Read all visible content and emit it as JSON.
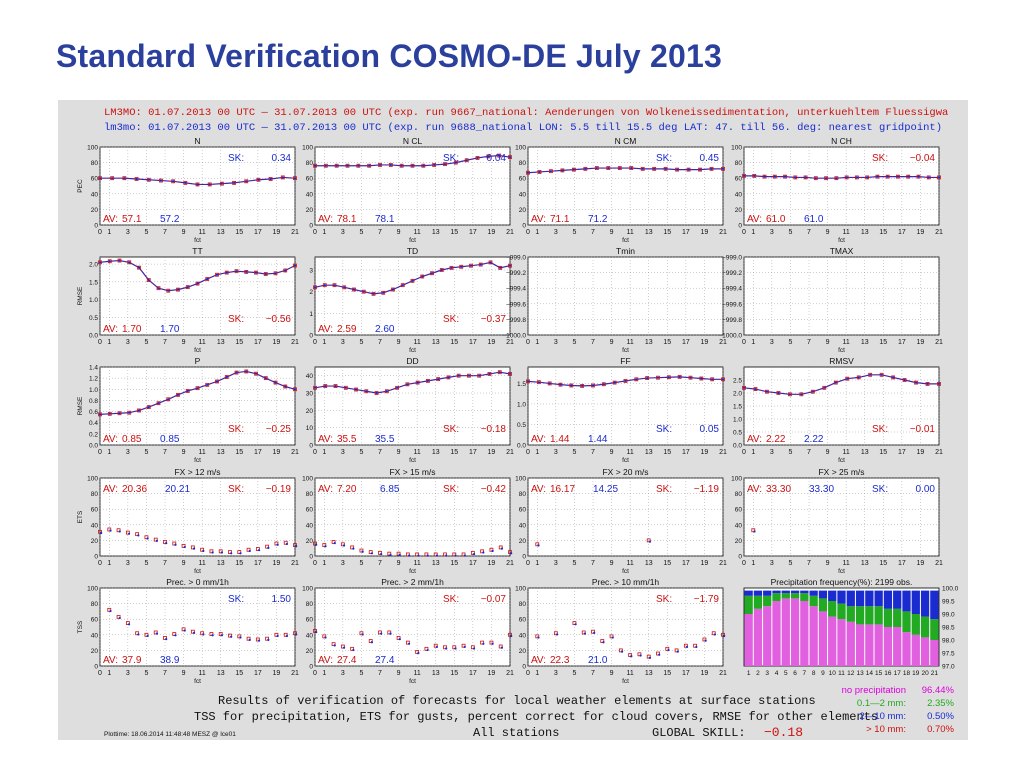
{
  "slide_title": "Standard Verification COSMO-DE July 2013",
  "colors": {
    "run1": "#cc1111",
    "run2": "#1a2bd0",
    "title": "#2b3f9c",
    "green": "#22aa22",
    "magenta": "#dd00dd"
  },
  "header": {
    "line1": "LM3MO: 01.07.2013 00 UTC — 31.07.2013 00 UTC (exp. run 9667_national: Aenderungen von Wolkeneissedimentation, unterkuehltem Fluessigwa",
    "line2": "lm3mo: 01.07.2013 00 UTC — 31.07.2013 00 UTC (exp. run 9688_national LON: 5.5 till 15.5 deg LAT: 47. till 56. deg: nearest gridpoint)"
  },
  "x_ticks": [
    "0",
    "1",
    "3",
    "5",
    "7",
    "9",
    "11",
    "13",
    "15",
    "17",
    "19",
    "21"
  ],
  "x_unit": "fct",
  "row_labels": [
    "PEC",
    "RMSE",
    "RMSE",
    "ETS",
    "TSS"
  ],
  "freq_legend": [
    {
      "label": "no precipitation",
      "value": "96.44%",
      "color": "#dd00dd"
    },
    {
      "label": "0.1—2 mm:",
      "value": "2.35%",
      "color": "#22aa22"
    },
    {
      "label": "2—10 mm:",
      "value": "0.50%",
      "color": "#1a2bd0"
    },
    {
      "label": "> 10 mm:",
      "value": "0.70%",
      "color": "#cc1111"
    }
  ],
  "footer": {
    "line1": "Results of verification of forecasts for local weather elements at surface stations",
    "line2": "TSS for precipitation, ETS for gusts, percent correct for cloud covers, RMSE for other elements",
    "stations": "All stations",
    "global_skill_label": "GLOBAL SKILL:",
    "global_skill_value": "−0.18",
    "plottime": "Plottime: 18.06.2014 11:48:48 MESZ @ lce01"
  },
  "chart_data": [
    {
      "type": "line",
      "title": "N",
      "ylim": [
        0,
        100
      ],
      "yticks": [
        "0",
        "20",
        "40",
        "60",
        "80",
        "100"
      ],
      "sk": "0.34",
      "sk_color": "#1a2bd0",
      "av1": "57.1",
      "av2": "57.2",
      "series": [
        {
          "values": [
            60,
            60,
            60,
            59,
            58,
            57,
            56,
            54,
            52,
            52,
            53,
            54,
            56,
            58,
            59,
            61,
            60
          ]
        }
      ]
    },
    {
      "type": "line",
      "title": "N CL",
      "ylim": [
        0,
        100
      ],
      "yticks": [
        "0",
        "20",
        "40",
        "60",
        "80",
        "100"
      ],
      "sk": "0.04",
      "sk_color": "#1a2bd0",
      "av1": "78.1",
      "av2": "78.1",
      "series": [
        {
          "values": [
            76,
            76,
            76,
            76,
            76,
            76,
            77,
            77,
            76,
            76,
            76,
            77,
            78,
            80,
            83,
            86,
            88,
            89,
            87
          ]
        }
      ]
    },
    {
      "type": "line",
      "title": "N CM",
      "ylim": [
        0,
        100
      ],
      "yticks": [
        "0",
        "20",
        "40",
        "60",
        "80",
        "100"
      ],
      "sk": "0.45",
      "sk_color": "#1a2bd0",
      "av1": "71.1",
      "av2": "71.2",
      "series": [
        {
          "values": [
            67,
            68,
            69,
            70,
            71,
            72,
            73,
            73,
            73,
            73,
            72,
            72,
            72,
            71,
            71,
            71,
            72,
            72
          ]
        }
      ]
    },
    {
      "type": "line",
      "title": "N CH",
      "ylim": [
        0,
        100
      ],
      "yticks": [
        "0",
        "20",
        "40",
        "60",
        "80",
        "100"
      ],
      "sk": "−0.04",
      "sk_color": "#cc1111",
      "av1": "61.0",
      "av2": "61.0",
      "series": [
        {
          "values": [
            63,
            63,
            62,
            62,
            62,
            61,
            61,
            60,
            60,
            60,
            61,
            61,
            61,
            62,
            62,
            62,
            62,
            62,
            61,
            61
          ]
        }
      ]
    },
    {
      "type": "line",
      "title": "TT",
      "ylim": [
        0,
        2.2
      ],
      "yticks": [
        "0.0",
        "0.5",
        "1.0",
        "1.5",
        "2.0"
      ],
      "sk": "−0.56",
      "sk_color": "#cc1111",
      "av1": "1.70",
      "av2": "1.70",
      "series": [
        {
          "values": [
            2.05,
            2.08,
            2.1,
            2.05,
            1.9,
            1.55,
            1.32,
            1.25,
            1.28,
            1.35,
            1.45,
            1.58,
            1.7,
            1.76,
            1.8,
            1.78,
            1.76,
            1.72,
            1.74,
            1.82,
            1.96
          ]
        }
      ]
    },
    {
      "type": "line",
      "title": "TD",
      "ylim": [
        0,
        3.6
      ],
      "yticks": [
        "0",
        "1",
        "2",
        "3"
      ],
      "sk": "−0.37",
      "sk_color": "#cc1111",
      "av1": "2.59",
      "av2": "2.60",
      "series": [
        {
          "values": [
            2.2,
            2.3,
            2.3,
            2.2,
            2.1,
            2.0,
            1.9,
            1.95,
            2.1,
            2.3,
            2.5,
            2.7,
            2.85,
            3.0,
            3.1,
            3.15,
            3.2,
            3.25,
            3.35,
            3.1,
            3.2
          ]
        }
      ]
    },
    {
      "type": "line",
      "title": "Tmin",
      "ylim": [
        -1000.0,
        -999.0
      ],
      "yticks": [
        "−1000.0",
        "−999.8",
        "−999.6",
        "−999.4",
        "−999.2",
        "−999.0"
      ],
      "sk": "",
      "sk_color": "#1a2bd0",
      "av1": "",
      "av2": "",
      "series": []
    },
    {
      "type": "line",
      "title": "TMAX",
      "ylim": [
        -1000.0,
        -999.0
      ],
      "yticks": [
        "−1000.0",
        "−999.8",
        "−999.6",
        "−999.4",
        "−999.2",
        "−999.0"
      ],
      "sk": "",
      "sk_color": "#1a2bd0",
      "av1": "",
      "av2": "",
      "series": []
    },
    {
      "type": "line",
      "title": "P",
      "ylim": [
        0,
        1.4
      ],
      "yticks": [
        "0.0",
        "0.2",
        "0.4",
        "0.6",
        "0.8",
        "1.0",
        "1.2",
        "1.4"
      ],
      "sk": "−0.25",
      "sk_color": "#cc1111",
      "av1": "0.85",
      "av2": "0.85",
      "series": [
        {
          "values": [
            0.55,
            0.56,
            0.57,
            0.58,
            0.62,
            0.68,
            0.75,
            0.82,
            0.9,
            0.97,
            1.02,
            1.08,
            1.14,
            1.22,
            1.3,
            1.32,
            1.28,
            1.2,
            1.12,
            1.05,
            1.0
          ]
        }
      ]
    },
    {
      "type": "line",
      "title": "DD",
      "ylim": [
        0,
        45
      ],
      "yticks": [
        "0",
        "10",
        "20",
        "30",
        "40"
      ],
      "sk": "−0.18",
      "sk_color": "#cc1111",
      "av1": "35.5",
      "av2": "35.5",
      "series": [
        {
          "values": [
            33,
            34,
            34,
            33,
            32,
            31,
            30,
            31,
            33,
            35,
            36,
            37,
            38,
            39,
            40,
            40,
            40,
            41,
            42,
            41
          ]
        }
      ]
    },
    {
      "type": "line",
      "title": "FF",
      "ylim": [
        0,
        1.9
      ],
      "yticks": [
        "0.0",
        "0.5",
        "1.0",
        "1.5"
      ],
      "sk": "0.05",
      "sk_color": "#1a2bd0",
      "av1": "1.44",
      "av2": "1.44",
      "series": [
        {
          "values": [
            1.55,
            1.53,
            1.5,
            1.47,
            1.45,
            1.44,
            1.45,
            1.48,
            1.52,
            1.56,
            1.6,
            1.63,
            1.64,
            1.65,
            1.66,
            1.64,
            1.62,
            1.6,
            1.6
          ]
        }
      ]
    },
    {
      "type": "line",
      "title": "RMSV",
      "ylim": [
        0,
        3.0
      ],
      "yticks": [
        "0.0",
        "0.5",
        "1.0",
        "1.5",
        "2.0",
        "2.5"
      ],
      "sk": "−0.01",
      "sk_color": "#cc1111",
      "av1": "2.22",
      "av2": "2.22",
      "series": [
        {
          "values": [
            2.2,
            2.15,
            2.05,
            2.0,
            1.95,
            1.95,
            2.05,
            2.2,
            2.4,
            2.55,
            2.6,
            2.7,
            2.7,
            2.6,
            2.5,
            2.4,
            2.35,
            2.35
          ]
        }
      ]
    },
    {
      "type": "scatter",
      "title": "FX > 12 m/s",
      "ylim": [
        0,
        100
      ],
      "yticks": [
        "0",
        "20",
        "40",
        "60",
        "80",
        "100"
      ],
      "sk": "−0.19",
      "sk_color": "#cc1111",
      "av1": "20.36",
      "av2": "20.21",
      "x": [
        0,
        1,
        2,
        3,
        4,
        5,
        6,
        7,
        8,
        9,
        10,
        11,
        12,
        13,
        14,
        15,
        16,
        17,
        18,
        19,
        20,
        21
      ],
      "series": [
        {
          "values": [
            31,
            34,
            33,
            30,
            28,
            24,
            21,
            18,
            16,
            13,
            11,
            8,
            6,
            6,
            5,
            5,
            8,
            9,
            12,
            16,
            17,
            14
          ]
        }
      ]
    },
    {
      "type": "scatter",
      "title": "FX > 15 m/s",
      "ylim": [
        0,
        100
      ],
      "yticks": [
        "0",
        "20",
        "40",
        "60",
        "80",
        "100"
      ],
      "sk": "−0.42",
      "sk_color": "#cc1111",
      "av1": "7.20",
      "av2": "6.85",
      "x": [
        0,
        1,
        2,
        3,
        4,
        5,
        6,
        7,
        8,
        9,
        10,
        11,
        12,
        13,
        14,
        15,
        16,
        17,
        18,
        19,
        20,
        21
      ],
      "series": [
        {
          "values": [
            16,
            14,
            18,
            15,
            11,
            7,
            5,
            4,
            3,
            3,
            2,
            2,
            2,
            2,
            2,
            2,
            2,
            4,
            6,
            8,
            11,
            5
          ]
        }
      ]
    },
    {
      "type": "scatter",
      "title": "FX > 20 m/s",
      "ylim": [
        0,
        100
      ],
      "yticks": [
        "0",
        "20",
        "40",
        "60",
        "80",
        "100"
      ],
      "sk": "−1.19",
      "sk_color": "#cc1111",
      "av1": "16.17",
      "av2": "14.25",
      "x": [
        1,
        13
      ],
      "series": [
        {
          "values": [
            15,
            20
          ]
        }
      ]
    },
    {
      "type": "scatter",
      "title": "FX > 25 m/s",
      "ylim": [
        0,
        100
      ],
      "yticks": [
        "0",
        "20",
        "40",
        "60",
        "80",
        "100"
      ],
      "sk": "0.00",
      "sk_color": "#1a2bd0",
      "av1": "33.30",
      "av2": "33.30",
      "x": [
        1
      ],
      "series": [
        {
          "values": [
            33
          ]
        }
      ]
    },
    {
      "type": "scatter",
      "title": "Prec. > 0 mm/1h",
      "ylim": [
        0,
        100
      ],
      "yticks": [
        "0",
        "20",
        "40",
        "60",
        "80",
        "100"
      ],
      "sk": "1.50",
      "sk_color": "#1a2bd0",
      "av1": "37.9",
      "av2": "38.9",
      "x": [
        1,
        2,
        3,
        4,
        5,
        6,
        7,
        8,
        9,
        10,
        11,
        12,
        13,
        14,
        15,
        16,
        17,
        18,
        19,
        20,
        21
      ],
      "series": [
        {
          "values": [
            72,
            63,
            55,
            42,
            40,
            43,
            36,
            41,
            47,
            44,
            42,
            41,
            41,
            39,
            38,
            35,
            34,
            35,
            40,
            40,
            42
          ]
        }
      ]
    },
    {
      "type": "scatter",
      "title": "Prec. > 2 mm/1h",
      "ylim": [
        0,
        100
      ],
      "yticks": [
        "0",
        "20",
        "40",
        "60",
        "80",
        "100"
      ],
      "sk": "−0.07",
      "sk_color": "#cc1111",
      "av1": "27.4",
      "av2": "27.4",
      "x": [
        0,
        1,
        2,
        3,
        4,
        5,
        6,
        7,
        8,
        9,
        10,
        11,
        12,
        13,
        14,
        15,
        16,
        17,
        18,
        19,
        20,
        21
      ],
      "series": [
        {
          "values": [
            45,
            38,
            28,
            25,
            22,
            42,
            32,
            43,
            43,
            36,
            30,
            18,
            22,
            26,
            24,
            24,
            26,
            24,
            30,
            30,
            25,
            40
          ]
        }
      ]
    },
    {
      "type": "scatter",
      "title": "Prec. > 10 mm/1h",
      "ylim": [
        0,
        100
      ],
      "yticks": [
        "0",
        "20",
        "40",
        "60",
        "80",
        "100"
      ],
      "sk": "−1.79",
      "sk_color": "#cc1111",
      "av1": "22.3",
      "av2": "21.0",
      "x": [
        1,
        3,
        5,
        6,
        7,
        8,
        9,
        10,
        11,
        12,
        13,
        14,
        15,
        16,
        17,
        18,
        19,
        20,
        21
      ],
      "series": [
        {
          "values": [
            38,
            42,
            55,
            43,
            44,
            32,
            38,
            20,
            14,
            15,
            12,
            16,
            22,
            20,
            26,
            26,
            34,
            42,
            40
          ]
        }
      ]
    },
    {
      "type": "bar",
      "title": "Precipitation frequency(%): 2199 obs.",
      "ylim": [
        97.0,
        100.0
      ],
      "yticks": [
        "97.0",
        "97.5",
        "98.0",
        "98.5",
        "99.0",
        "99.5",
        "100.0"
      ],
      "categories": [
        "1",
        "2",
        "3",
        "4",
        "5",
        "6",
        "7",
        "8",
        "9",
        "10",
        "11",
        "12",
        "13",
        "14",
        "15",
        "16",
        "17",
        "18",
        "19",
        "20",
        "21"
      ],
      "series": [
        {
          "values": [
            99.0,
            99.2,
            99.3,
            99.5,
            99.6,
            99.6,
            99.5,
            99.3,
            99.1,
            98.9,
            98.8,
            98.7,
            98.6,
            98.6,
            98.6,
            98.5,
            98.5,
            98.3,
            98.2,
            98.1,
            98.0
          ]
        },
        {
          "values": [
            99.7,
            99.7,
            99.7,
            99.8,
            99.8,
            99.8,
            99.8,
            99.7,
            99.6,
            99.5,
            99.4,
            99.3,
            99.3,
            99.3,
            99.3,
            99.2,
            99.2,
            99.1,
            99.0,
            98.9,
            98.8
          ]
        },
        {
          "values": [
            99.9,
            99.9,
            99.9,
            99.9,
            99.9,
            99.9,
            99.9,
            99.9,
            99.9,
            99.9,
            99.9,
            99.9,
            99.9,
            99.9,
            99.9,
            99.9,
            99.9,
            99.9,
            99.9,
            99.9,
            99.9
          ]
        }
      ]
    }
  ]
}
